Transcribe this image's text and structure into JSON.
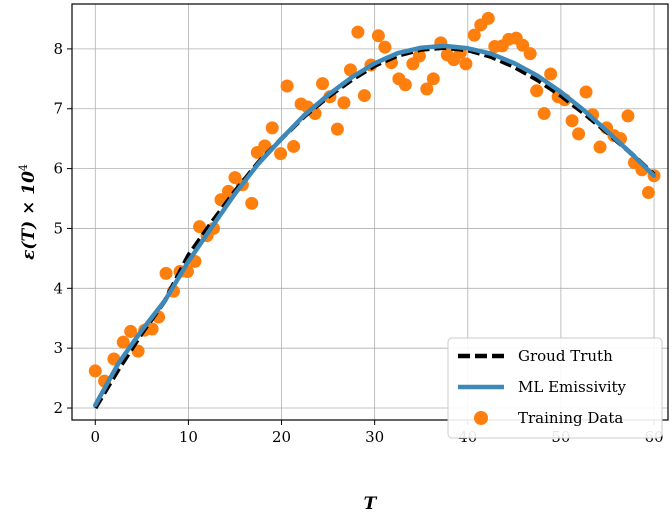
{
  "chart_data": {
    "type": "line",
    "title": "",
    "xlabel": "T",
    "ylabel_main": "ε(T) × 10",
    "ylabel_exponent": "4",
    "xlim": [
      -2.5,
      61.5
    ],
    "ylim": [
      1.8,
      8.75
    ],
    "xticks": [
      0,
      10,
      20,
      30,
      40,
      50,
      60
    ],
    "yticks": [
      2,
      3,
      4,
      5,
      6,
      7,
      8
    ],
    "grid": true,
    "legend_position": "lower-right",
    "colors": {
      "ground_truth": "#000000",
      "ml": "#3f89b8",
      "training": "#ff7f0e"
    },
    "series": [
      {
        "name": "Groud Truth",
        "style": "dashed",
        "x": [
          0,
          2.5,
          5,
          7.5,
          10,
          12.5,
          15,
          17.5,
          20,
          22.5,
          25,
          27.5,
          30,
          32.5,
          35,
          37.5,
          40,
          42.5,
          45,
          47.5,
          50,
          52.5,
          55,
          57.5,
          60
        ],
        "y": [
          2.0,
          2.65,
          3.25,
          3.8,
          4.55,
          5.1,
          5.62,
          6.1,
          6.5,
          6.88,
          7.2,
          7.48,
          7.72,
          7.89,
          7.99,
          8.02,
          7.98,
          7.87,
          7.7,
          7.48,
          7.22,
          6.92,
          6.6,
          6.26,
          5.9
        ]
      },
      {
        "name": "ML Emissivity",
        "style": "solid",
        "x": [
          0,
          2.5,
          5,
          7.5,
          10,
          12.5,
          15,
          17.5,
          20,
          22.5,
          25,
          27.5,
          30,
          32.5,
          35,
          37.5,
          40,
          42.5,
          45,
          47.5,
          50,
          52.5,
          55,
          57.5,
          60
        ],
        "y": [
          2.05,
          2.75,
          3.3,
          3.8,
          4.45,
          5.02,
          5.58,
          6.08,
          6.5,
          6.9,
          7.23,
          7.52,
          7.76,
          7.93,
          8.02,
          8.05,
          8.01,
          7.92,
          7.76,
          7.55,
          7.28,
          6.97,
          6.62,
          6.26,
          5.88
        ]
      },
      {
        "name": "Training Data",
        "style": "scatter",
        "x": [
          0,
          1,
          2,
          3,
          3.8,
          4.6,
          5.3,
          6.1,
          6.8,
          7.6,
          8.4,
          9.1,
          9.9,
          10.7,
          11.2,
          12,
          12.7,
          13.5,
          14.3,
          15,
          15.8,
          16.8,
          17.4,
          18.2,
          19,
          19.9,
          20.6,
          21.3,
          22.1,
          22.8,
          23.6,
          24.4,
          25.2,
          26,
          26.7,
          27.4,
          28.2,
          28.9,
          29.6,
          30.4,
          31.1,
          31.8,
          32.6,
          33.3,
          34.1,
          34.8,
          35.6,
          36.3,
          37.1,
          37.8,
          38.5,
          39.2,
          39.8,
          40.7,
          41.4,
          42.2,
          42.9,
          43.7,
          44.4,
          45.2,
          45.9,
          46.7,
          47.4,
          48.2,
          48.9,
          49.7,
          50.4,
          51.2,
          51.9,
          52.7,
          53.4,
          54.2,
          54.9,
          55.7,
          56.4,
          57.2,
          57.9,
          58.7,
          59.4,
          60
        ],
        "y": [
          2.62,
          2.45,
          2.82,
          3.1,
          3.28,
          2.95,
          3.3,
          3.32,
          3.52,
          4.25,
          3.95,
          4.28,
          4.28,
          4.45,
          5.03,
          4.88,
          5.0,
          5.48,
          5.62,
          5.85,
          5.73,
          5.42,
          6.27,
          6.38,
          6.68,
          6.25,
          7.38,
          6.37,
          7.08,
          7.03,
          6.92,
          7.42,
          7.2,
          6.66,
          7.1,
          7.65,
          8.28,
          7.22,
          7.73,
          8.22,
          8.03,
          7.77,
          7.5,
          7.4,
          7.75,
          7.88,
          7.33,
          7.5,
          8.1,
          7.9,
          7.82,
          7.94,
          7.75,
          8.23,
          8.4,
          8.51,
          8.04,
          8.05,
          8.16,
          8.18,
          8.06,
          7.92,
          7.3,
          6.92,
          7.58,
          7.2,
          7.15,
          6.8,
          6.58,
          7.28,
          6.9,
          6.36,
          6.68,
          6.55,
          6.5,
          6.88,
          6.1,
          5.98,
          5.6,
          5.88
        ]
      }
    ]
  }
}
